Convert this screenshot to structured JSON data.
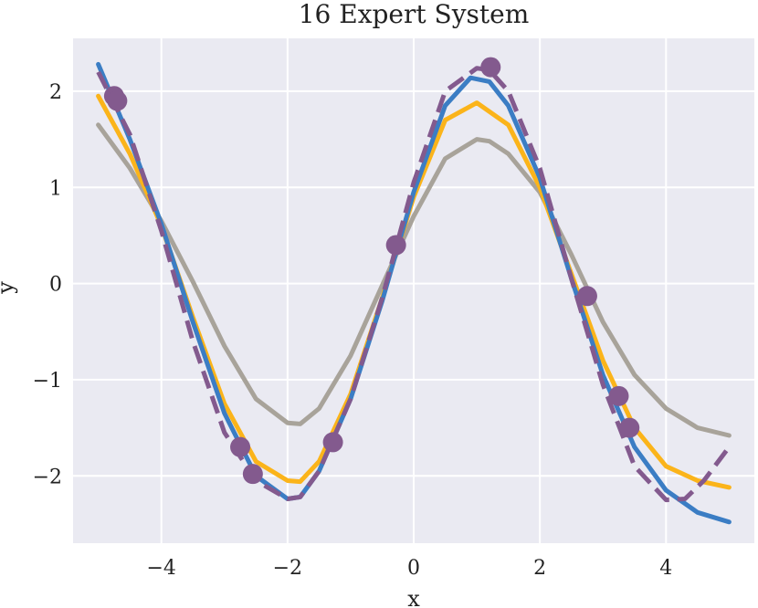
{
  "chart_data": {
    "type": "line",
    "title": "16 Expert System",
    "xlabel": "x",
    "ylabel": "y",
    "xlim": [
      -5.4,
      5.4
    ],
    "ylim": [
      -2.7,
      2.55
    ],
    "xticks": [
      -4,
      -2,
      0,
      2,
      4
    ],
    "yticks": [
      -2,
      -1,
      0,
      1,
      2
    ],
    "xtick_labels": [
      "−4",
      "−2",
      "0",
      "2",
      "4"
    ],
    "ytick_labels": [
      "−2",
      "−1",
      "0",
      "1",
      "2"
    ],
    "grid": true,
    "background": "#eaeaf2",
    "grid_color": "#ffffff",
    "series": [
      {
        "color": "#a8a39a",
        "style": "solid",
        "x": [
          -5.0,
          -4.5,
          -4.0,
          -3.5,
          -3.0,
          -2.5,
          -2.0,
          -1.8,
          -1.5,
          -1.0,
          -0.5,
          0.0,
          0.5,
          1.0,
          1.2,
          1.5,
          2.0,
          2.5,
          3.0,
          3.5,
          4.0,
          4.5,
          5.0
        ],
        "y": [
          1.65,
          1.2,
          0.65,
          0.02,
          -0.65,
          -1.2,
          -1.45,
          -1.46,
          -1.3,
          -0.75,
          -0.02,
          0.7,
          1.3,
          1.5,
          1.48,
          1.35,
          0.95,
          0.3,
          -0.4,
          -0.95,
          -1.3,
          -1.5,
          -1.58
        ]
      },
      {
        "color": "#fbb41a",
        "style": "solid",
        "x": [
          -5.0,
          -4.5,
          -4.0,
          -3.5,
          -3.0,
          -2.5,
          -2.0,
          -1.8,
          -1.5,
          -1.0,
          -0.5,
          0.0,
          0.5,
          1.0,
          1.5,
          2.0,
          2.5,
          3.0,
          3.5,
          4.0,
          4.5,
          5.0
        ],
        "y": [
          1.95,
          1.35,
          0.6,
          -0.35,
          -1.25,
          -1.85,
          -2.05,
          -2.06,
          -1.85,
          -1.15,
          -0.15,
          0.9,
          1.7,
          1.88,
          1.65,
          1.0,
          0.1,
          -0.8,
          -1.5,
          -1.9,
          -2.05,
          -2.12
        ]
      },
      {
        "color": "#3b7dc4",
        "style": "solid",
        "x": [
          -5.0,
          -4.5,
          -4.0,
          -3.5,
          -3.0,
          -2.5,
          -2.0,
          -1.8,
          -1.5,
          -1.0,
          -0.5,
          0.0,
          0.5,
          0.9,
          1.2,
          1.5,
          2.0,
          2.5,
          3.0,
          3.5,
          4.0,
          4.5,
          5.0
        ],
        "y": [
          2.28,
          1.5,
          0.62,
          -0.4,
          -1.35,
          -2.0,
          -2.24,
          -2.22,
          -1.95,
          -1.2,
          -0.18,
          0.95,
          1.85,
          2.14,
          2.1,
          1.85,
          1.1,
          0.05,
          -0.95,
          -1.7,
          -2.15,
          -2.38,
          -2.48
        ]
      },
      {
        "color": "#835a8e",
        "style": "dashed",
        "x": [
          -5.0,
          -4.5,
          -4.0,
          -3.5,
          -3.0,
          -2.5,
          -2.0,
          -1.8,
          -1.5,
          -1.0,
          -0.5,
          0.0,
          0.5,
          1.0,
          1.2,
          1.5,
          2.0,
          2.5,
          3.0,
          3.5,
          4.0,
          4.3,
          4.6,
          5.0
        ],
        "y": [
          2.2,
          1.55,
          0.55,
          -0.6,
          -1.55,
          -2.05,
          -2.24,
          -2.22,
          -1.95,
          -1.2,
          -0.15,
          1.05,
          2.0,
          2.24,
          2.22,
          2.0,
          1.2,
          0.05,
          -1.05,
          -1.9,
          -2.25,
          -2.24,
          -2.05,
          -1.7
        ]
      }
    ],
    "scatter": {
      "color": "#835a8e",
      "x": [
        -4.75,
        -4.7,
        -2.75,
        -2.55,
        -1.28,
        -0.28,
        1.22,
        2.75,
        3.25,
        3.42
      ],
      "y": [
        1.95,
        1.9,
        -1.7,
        -1.98,
        -1.65,
        0.4,
        2.25,
        -0.13,
        -1.17,
        -1.5
      ]
    }
  }
}
